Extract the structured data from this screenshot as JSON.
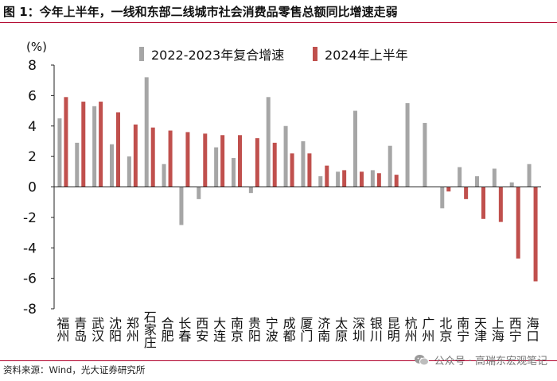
{
  "header": {
    "title": "图 1：今年上半年，一线和东部二线城市社会消费品零售总额同比增速走弱"
  },
  "chart_data": {
    "type": "bar",
    "y_unit_label": "(%)",
    "ylim": [
      -8,
      8
    ],
    "yticks": [
      8,
      6,
      4,
      2,
      0,
      -2,
      -4,
      -6,
      -8
    ],
    "legend_position": "top",
    "categories": [
      "福州",
      "青岛",
      "武汉",
      "沈阳",
      "郑州",
      "石家庄",
      "合肥",
      "长春",
      "西安",
      "大连",
      "南京",
      "贵阳",
      "宁波",
      "成都",
      "厦门",
      "济南",
      "太原",
      "深圳",
      "银川",
      "昆明",
      "杭州",
      "广州",
      "北京",
      "南宁",
      "天津",
      "上海",
      "西宁",
      "海口"
    ],
    "series": [
      {
        "name": "2022-2023年复合增速",
        "color": "#a6a6a6",
        "values": [
          4.5,
          2.9,
          5.3,
          2.8,
          2.0,
          7.2,
          1.5,
          -2.5,
          -0.8,
          2.6,
          1.9,
          -0.4,
          5.9,
          4.0,
          3.0,
          0.7,
          1.0,
          5.0,
          1.1,
          2.7,
          5.5,
          4.2,
          -1.4,
          1.3,
          0.7,
          1.2,
          0.3,
          1.5
        ]
      },
      {
        "name": "2024年上半年",
        "color": "#c0504d",
        "values": [
          5.9,
          5.6,
          5.6,
          4.9,
          4.1,
          3.9,
          3.7,
          3.6,
          3.5,
          3.4,
          3.4,
          3.2,
          2.9,
          2.2,
          2.2,
          1.4,
          1.1,
          1.0,
          0.9,
          0.8,
          0.0,
          0.0,
          -0.3,
          -0.8,
          -2.1,
          -2.3,
          -4.7,
          -6.2
        ]
      }
    ],
    "grid": false
  },
  "footer": {
    "source": "资料来源：Wind，光大证券研究所",
    "watermark": "公众号 · 高瑞东宏观笔记"
  }
}
